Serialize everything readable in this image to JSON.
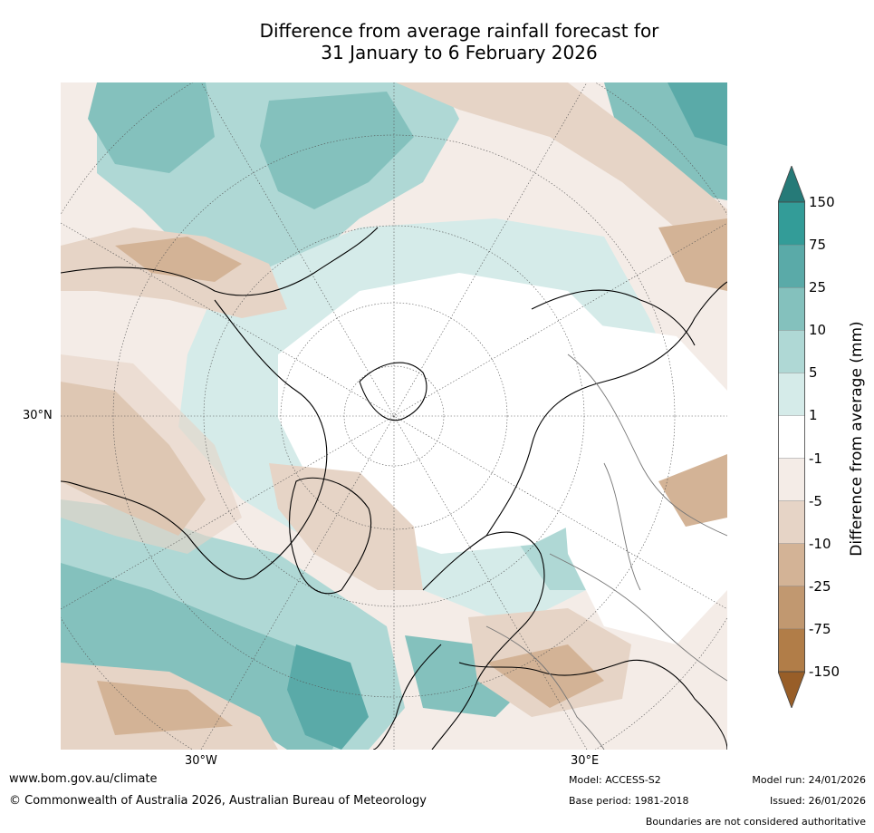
{
  "title": {
    "line1": "Difference from average rainfall forecast for",
    "line2": "31 January to 6 February 2026"
  },
  "map": {
    "projection": "north polar stereographic",
    "longitude_labels": [
      "30°W",
      "30°E"
    ],
    "latitude_labels": [
      "30°N"
    ]
  },
  "colorbar": {
    "title": "Difference from average (mm)",
    "ticks": [
      "150",
      "75",
      "25",
      "10",
      "5",
      "1",
      "-1",
      "-5",
      "-10",
      "-25",
      "-75",
      "-150"
    ],
    "colors": [
      "#267a78",
      "#339c98",
      "#5aaaa8",
      "#84c1bd",
      "#afd8d5",
      "#d5ebe9",
      "#ffffff",
      "#f4ece7",
      "#e6d4c6",
      "#d3b396",
      "#c19870",
      "#b17d48",
      "#985e28"
    ],
    "extend": "both"
  },
  "footer": {
    "website": "www.bom.gov.au/climate",
    "copyright": "© Commonwealth of Australia 2026, Australian Bureau of Meteorology",
    "model": "Model: ACCESS-S2",
    "base_period": "Base period: 1981-2018",
    "model_run": "Model run: 24/01/2026",
    "issued": "Issued: 26/01/2026",
    "disclaimer": "Boundaries are not considered authoritative"
  }
}
